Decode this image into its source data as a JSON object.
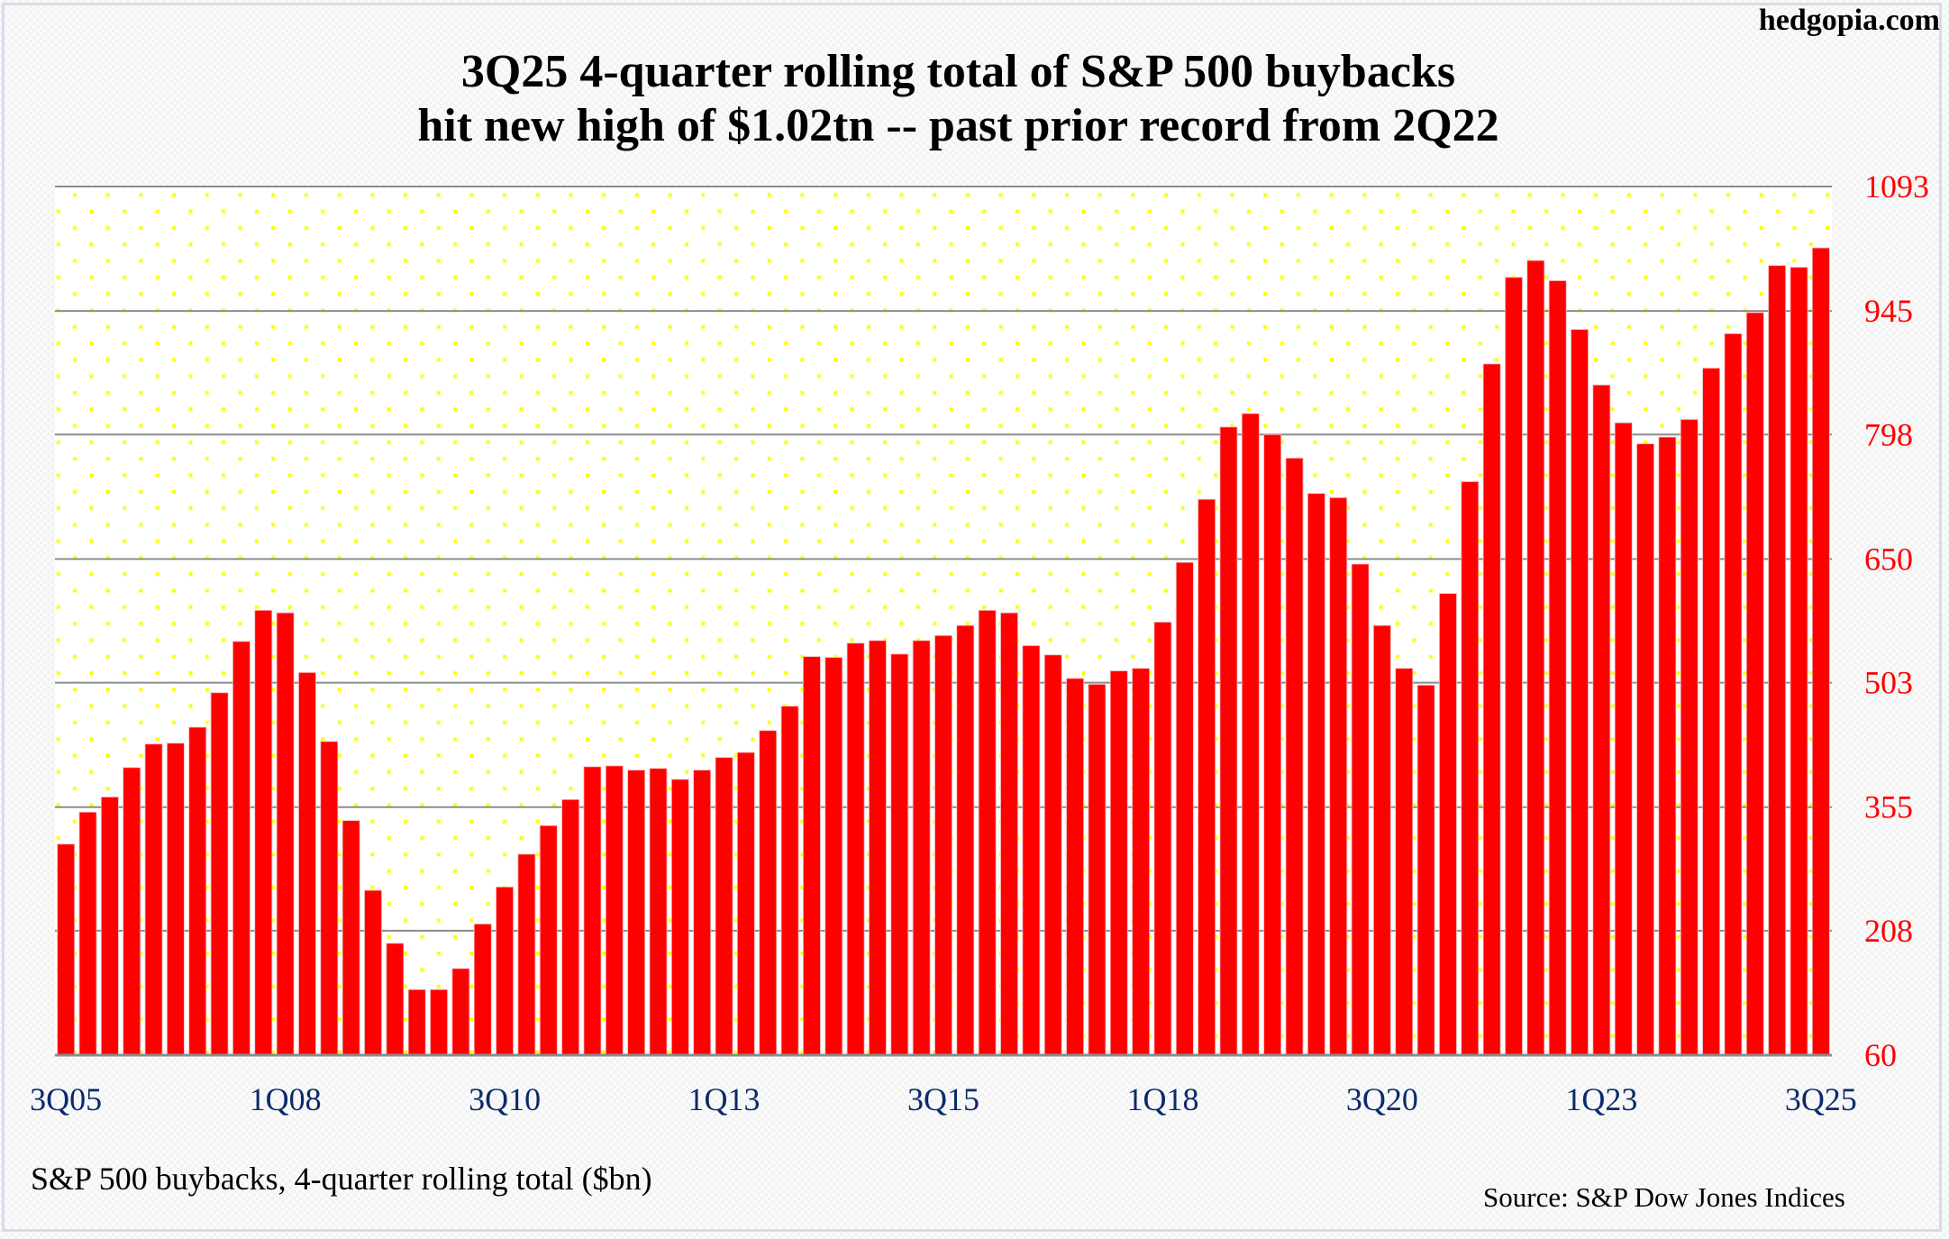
{
  "watermark": "hedgopia.com",
  "caption": "S&P 500 buybacks, 4-quarter rolling total ($bn)",
  "source": "Source: S&P Dow Jones Indices",
  "colors": {
    "bar": "#ff0000",
    "y_tick_label": "#ff0000",
    "x_tick_label": "#0b2a6b",
    "gridline": "#8c8c8c",
    "plot_dots": "#ffff00"
  },
  "chart_data": {
    "type": "bar",
    "title": "3Q25 4-quarter rolling total of S&P 500 buybacks",
    "subtitle": "hit new high of $1.02tn -- past prior record from 2Q22",
    "xlabel": "",
    "ylabel": "S&P 500 buybacks, 4-quarter rolling total ($bn)",
    "ylim": [
      60,
      1093
    ],
    "y_axis_side": "right",
    "y_ticks": [
      60,
      208,
      355,
      503,
      650,
      798,
      945,
      1093
    ],
    "y_tick_labels": [
      "60",
      "208",
      "355",
      "503",
      "650",
      "798",
      "945",
      "1093"
    ],
    "x_tick_labels": [
      "3Q05",
      "1Q08",
      "3Q10",
      "1Q13",
      "3Q15",
      "1Q18",
      "3Q20",
      "1Q23",
      "3Q25"
    ],
    "grid": true,
    "legend": "none",
    "categories": [
      "3Q05",
      "4Q05",
      "1Q06",
      "2Q06",
      "3Q06",
      "4Q06",
      "1Q07",
      "2Q07",
      "3Q07",
      "4Q07",
      "1Q08",
      "2Q08",
      "3Q08",
      "4Q08",
      "1Q09",
      "2Q09",
      "3Q09",
      "4Q09",
      "1Q10",
      "2Q10",
      "3Q10",
      "4Q10",
      "1Q11",
      "2Q11",
      "3Q11",
      "4Q11",
      "1Q12",
      "2Q12",
      "3Q12",
      "4Q12",
      "1Q13",
      "2Q13",
      "3Q13",
      "4Q13",
      "1Q14",
      "2Q14",
      "3Q14",
      "4Q14",
      "1Q15",
      "2Q15",
      "3Q15",
      "4Q15",
      "1Q16",
      "2Q16",
      "3Q16",
      "4Q16",
      "1Q17",
      "2Q17",
      "3Q17",
      "4Q17",
      "1Q18",
      "2Q18",
      "3Q18",
      "4Q18",
      "1Q19",
      "2Q19",
      "3Q19",
      "4Q19",
      "1Q20",
      "2Q20",
      "3Q20",
      "4Q20",
      "1Q21",
      "2Q21",
      "3Q21",
      "4Q21",
      "1Q22",
      "2Q22",
      "3Q22",
      "4Q22",
      "1Q23",
      "2Q23",
      "3Q23",
      "4Q23",
      "1Q24",
      "2Q24",
      "3Q24",
      "4Q24",
      "1Q25",
      "2Q25",
      "3Q25"
    ],
    "values": [
      311,
      349,
      367,
      402,
      430,
      431,
      450,
      491,
      552,
      589,
      586,
      515,
      433,
      339,
      256,
      193,
      138,
      138,
      163,
      216,
      260,
      299,
      333,
      364,
      403,
      404,
      399,
      401,
      388,
      399,
      414,
      420,
      446,
      475,
      534,
      533,
      550,
      553,
      537,
      553,
      559,
      571,
      589,
      586,
      547,
      536,
      508,
      501,
      517,
      520,
      575,
      646,
      721,
      807,
      823,
      798,
      770,
      728,
      723,
      644,
      571,
      520,
      500,
      609,
      742,
      882,
      985,
      1005,
      981,
      923,
      857,
      812,
      787,
      795,
      816,
      877,
      918,
      943,
      999,
      997,
      1020
    ]
  }
}
